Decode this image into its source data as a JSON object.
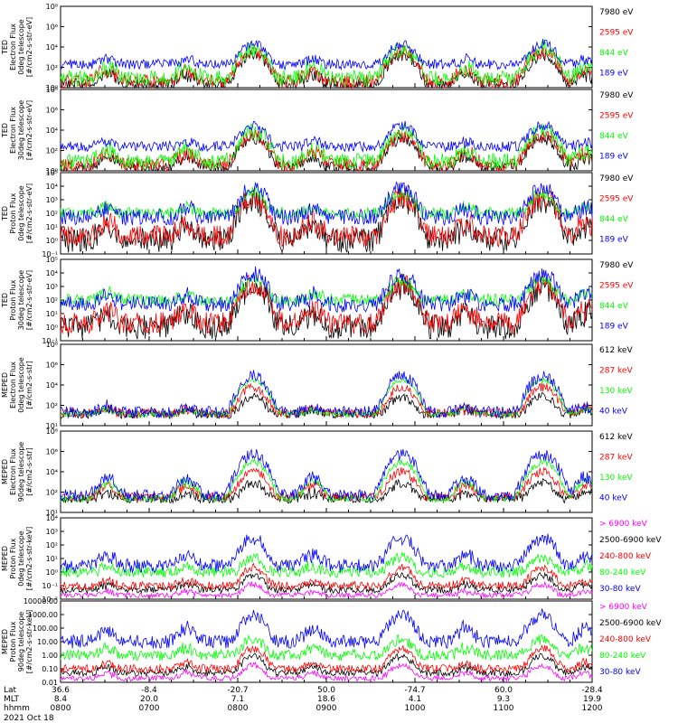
{
  "figure": {
    "date_label": "2021 Oct 18",
    "row_labels": [
      "Lat",
      "MLT",
      "hhmm"
    ]
  },
  "colors": {
    "black": "#000000",
    "red": "#ff0000",
    "green": "#00ff00",
    "blue": "#0000ff",
    "magenta": "#ff00ff"
  },
  "time_axis": {
    "range_hours": [
      8.0,
      12.0
    ],
    "ticks": [
      {
        "hhmm": "0800",
        "lat": "36.6",
        "mlt": "8.4"
      },
      {
        "hhmm": "0700",
        "lat": "-8.4",
        "mlt": "20.0"
      },
      {
        "hhmm": "0800",
        "lat": "-20.7",
        "mlt": "7.1"
      },
      {
        "hhmm": "0900",
        "lat": "50.0",
        "mlt": "18.6"
      },
      {
        "hhmm": "1000",
        "lat": "-74.7",
        "mlt": "4.1"
      },
      {
        "hhmm": "1100",
        "lat": "60.0",
        "mlt": "9.3"
      },
      {
        "hhmm": "1200",
        "lat": "-28.4",
        "mlt": "19.9"
      }
    ]
  },
  "chart_data": [
    {
      "type": "line",
      "instrument": "TED",
      "ylabel": [
        "TED",
        "Electron Flux",
        "0deg telescope",
        "[#/cm2-s-str-eV]"
      ],
      "yscale": "log",
      "ylim": [
        1,
        100000000
      ],
      "yticks": [
        "10⁰",
        "10²",
        "10⁴",
        "10⁶",
        "10⁸"
      ],
      "legend_placement": "right",
      "series": [
        {
          "name": "7980 eV",
          "color": "#000000",
          "base": 2,
          "typical": 20,
          "peak": 1500,
          "noise": 1.2
        },
        {
          "name": "2595 eV",
          "color": "#ff0000",
          "base": 4,
          "typical": 50,
          "peak": 3000,
          "noise": 1.4
        },
        {
          "name": "844 eV",
          "color": "#00ff00",
          "base": 8,
          "typical": 100,
          "peak": 6000,
          "noise": 1.6
        },
        {
          "name": "189 eV",
          "color": "#0000ff",
          "base": 200,
          "typical": 400,
          "peak": 20000,
          "noise": 1.0
        }
      ]
    },
    {
      "type": "line",
      "instrument": "TED",
      "ylabel": [
        "TED",
        "Electron Flux",
        "30deg telescope",
        "[#/cm2-s-str-eV]"
      ],
      "yscale": "log",
      "ylim": [
        1,
        100000000
      ],
      "yticks": [
        "10⁰",
        "10²",
        "10⁴",
        "10⁶",
        "10⁸"
      ],
      "legend_placement": "right",
      "series": [
        {
          "name": "7980 eV",
          "color": "#000000",
          "base": 2,
          "typical": 20,
          "peak": 1500,
          "noise": 1.2
        },
        {
          "name": "2595 eV",
          "color": "#ff0000",
          "base": 4,
          "typical": 60,
          "peak": 3000,
          "noise": 1.4
        },
        {
          "name": "844 eV",
          "color": "#00ff00",
          "base": 8,
          "typical": 120,
          "peak": 8000,
          "noise": 1.6
        },
        {
          "name": "189 eV",
          "color": "#0000ff",
          "base": 250,
          "typical": 500,
          "peak": 30000,
          "noise": 1.0
        }
      ]
    },
    {
      "type": "line",
      "instrument": "TED",
      "ylabel": [
        "TED",
        "Proton Flux",
        "0deg telescope",
        "[#/cm2-s-str-eV]"
      ],
      "yscale": "log",
      "ylim": [
        0.1,
        100000
      ],
      "yticks": [
        "10⁻¹",
        "10⁰",
        "10¹",
        "10²",
        "10³",
        "10⁴",
        "10⁵"
      ],
      "legend_placement": "right",
      "series": [
        {
          "name": "7980 eV",
          "color": "#000000",
          "base": 1,
          "typical": 10,
          "peak": 800,
          "noise": 1.8
        },
        {
          "name": "2595 eV",
          "color": "#ff0000",
          "base": 2,
          "typical": 20,
          "peak": 1500,
          "noise": 1.6
        },
        {
          "name": "844 eV",
          "color": "#00ff00",
          "base": 100,
          "typical": 200,
          "peak": 3000,
          "noise": 0.9
        },
        {
          "name": "189 eV",
          "color": "#0000ff",
          "base": 50,
          "typical": 200,
          "peak": 8000,
          "noise": 1.2
        }
      ]
    },
    {
      "type": "line",
      "instrument": "TED",
      "ylabel": [
        "TED",
        "Proton Flux",
        "30deg telescope",
        "[#/cm2-s-str-eV]"
      ],
      "yscale": "log",
      "ylim": [
        0.1,
        100000
      ],
      "yticks": [
        "10⁻¹",
        "10⁰",
        "10¹",
        "10²",
        "10³",
        "10⁴",
        "10⁵"
      ],
      "legend_placement": "right",
      "series": [
        {
          "name": "7980 eV",
          "color": "#000000",
          "base": 1,
          "typical": 10,
          "peak": 800,
          "noise": 1.8
        },
        {
          "name": "2595 eV",
          "color": "#ff0000",
          "base": 2,
          "typical": 20,
          "peak": 1500,
          "noise": 1.6
        },
        {
          "name": "844 eV",
          "color": "#00ff00",
          "base": 100,
          "typical": 250,
          "peak": 3000,
          "noise": 0.9
        },
        {
          "name": "189 eV",
          "color": "#0000ff",
          "base": 50,
          "typical": 200,
          "peak": 8000,
          "noise": 1.2
        }
      ]
    },
    {
      "type": "line",
      "instrument": "MEPED",
      "ylabel": [
        "MEPED",
        "Electron Flux",
        "0deg telescope",
        "[#/cm2-s-str]"
      ],
      "yscale": "log",
      "ylim": [
        10,
        100000000
      ],
      "yticks": [
        "10¹",
        "10²",
        "10⁴",
        "10⁶",
        "10⁸"
      ],
      "legend_placement": "right",
      "series": [
        {
          "name": "612 keV",
          "color": "#000000",
          "base": 100,
          "typical": 150,
          "peak": 3000,
          "noise": 0.8
        },
        {
          "name": "287 keV",
          "color": "#ff0000",
          "base": 120,
          "typical": 200,
          "peak": 20000,
          "noise": 0.8
        },
        {
          "name": "130 keV",
          "color": "#00ff00",
          "base": 100,
          "typical": 150,
          "peak": 80000,
          "noise": 0.5
        },
        {
          "name": "40 keV",
          "color": "#0000ff",
          "base": 150,
          "typical": 300,
          "peak": 200000,
          "noise": 1.0
        }
      ]
    },
    {
      "type": "line",
      "instrument": "MEPED",
      "ylabel": [
        "MEPED",
        "Electron Flux",
        "90deg telescope",
        "[#/cm2-s-str]"
      ],
      "yscale": "log",
      "ylim": [
        10,
        100000000
      ],
      "yticks": [
        "10¹",
        "10²",
        "10⁴",
        "10⁶",
        "10⁸"
      ],
      "legend_placement": "right",
      "series": [
        {
          "name": "612 keV",
          "color": "#000000",
          "base": 150,
          "typical": 300,
          "peak": 3000,
          "noise": 0.8
        },
        {
          "name": "287 keV",
          "color": "#ff0000",
          "base": 200,
          "typical": 2000,
          "peak": 30000,
          "noise": 0.8
        },
        {
          "name": "130 keV",
          "color": "#00ff00",
          "base": 150,
          "typical": 5000,
          "peak": 200000,
          "noise": 0.6
        },
        {
          "name": "40 keV",
          "color": "#0000ff",
          "base": 300,
          "typical": 10000,
          "peak": 1000000,
          "noise": 1.0
        }
      ]
    },
    {
      "type": "line",
      "instrument": "MEPED",
      "ylabel": [
        "MEPED",
        "Proton Flux",
        "0deg telescope",
        "[#/cm2-s-str-keV]"
      ],
      "yscale": "log",
      "ylim": [
        0.01,
        10000
      ],
      "yticks": [
        "10⁻²",
        "10⁻¹",
        "10⁰",
        "10¹",
        "10²",
        "10³",
        "10⁴"
      ],
      "legend_placement": "right",
      "series": [
        {
          "name": "> 6900 keV",
          "color": "#ff00ff",
          "base": 0.02,
          "typical": 0.02,
          "peak": 0.1,
          "noise": 0.4
        },
        {
          "name": "2500-6900 keV",
          "color": "#000000",
          "base": 0.05,
          "typical": 0.08,
          "peak": 0.5,
          "noise": 0.5
        },
        {
          "name": "240-800 keV",
          "color": "#ff0000",
          "base": 0.1,
          "typical": 0.15,
          "peak": 2,
          "noise": 0.6
        },
        {
          "name": "80-240 keV",
          "color": "#00ff00",
          "base": 1,
          "typical": 2,
          "peak": 10,
          "noise": 0.8
        },
        {
          "name": "30-80 keV",
          "color": "#0000ff",
          "base": 3,
          "typical": 20,
          "peak": 300,
          "noise": 1.0
        }
      ]
    },
    {
      "type": "line",
      "instrument": "MEPED",
      "ylabel": [
        "MEPED",
        "Proton Flux",
        "90deg telescope",
        "[#/cm2-s-str-keV]"
      ],
      "yscale": "log",
      "ylim": [
        0.01,
        10000
      ],
      "yticks": [
        "0.01",
        "0.10",
        "1.00",
        "10.00",
        "100.00",
        "1000.00",
        "10000.00"
      ],
      "legend_placement": "right",
      "series": [
        {
          "name": "> 6900 keV",
          "color": "#ff00ff",
          "base": 0.02,
          "typical": 0.03,
          "peak": 0.15,
          "noise": 0.4
        },
        {
          "name": "2500-6900 keV",
          "color": "#000000",
          "base": 0.05,
          "typical": 0.1,
          "peak": 0.8,
          "noise": 0.5
        },
        {
          "name": "240-800 keV",
          "color": "#ff0000",
          "base": 0.1,
          "typical": 0.2,
          "peak": 3,
          "noise": 0.6
        },
        {
          "name": "80-240 keV",
          "color": "#00ff00",
          "base": 1,
          "typical": 3,
          "peak": 12,
          "noise": 0.8
        },
        {
          "name": "30-80 keV",
          "color": "#0000ff",
          "base": 10,
          "typical": 100,
          "peak": 800,
          "noise": 1.0
        }
      ]
    }
  ]
}
